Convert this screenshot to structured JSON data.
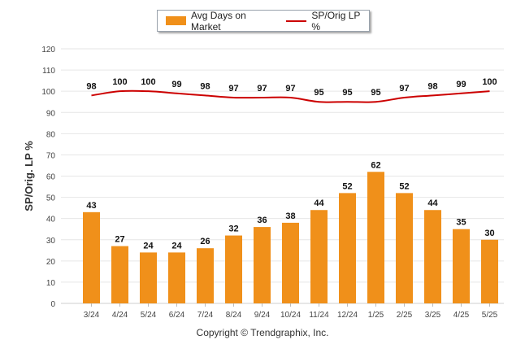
{
  "legend": {
    "bar_label": "Avg Days on Market",
    "line_label": "SP/Orig LP %"
  },
  "copyright": "Copyright © Trendgraphix, Inc.",
  "colors": {
    "bar": "#f0901a",
    "line": "#cc0000",
    "grid": "#e6e6e6",
    "axis_text": "#444444"
  },
  "chart_data": {
    "type": "bar",
    "ylabel": "SP/Orig. LP %",
    "ylim": [
      0,
      120
    ],
    "yticks": [
      0,
      10,
      20,
      30,
      40,
      50,
      60,
      70,
      80,
      90,
      100,
      110,
      120
    ],
    "grid": true,
    "legend_position": "top-center",
    "categories": [
      "3/24",
      "4/24",
      "5/24",
      "6/24",
      "7/24",
      "8/24",
      "9/24",
      "10/24",
      "11/24",
      "12/24",
      "1/25",
      "2/25",
      "3/25",
      "4/25",
      "5/25"
    ],
    "series": [
      {
        "name": "Avg Days on Market",
        "type": "bar",
        "values": [
          43,
          27,
          24,
          24,
          26,
          32,
          36,
          38,
          44,
          52,
          62,
          52,
          44,
          35,
          30
        ]
      },
      {
        "name": "SP/Orig LP %",
        "type": "line",
        "values": [
          98,
          100,
          100,
          99,
          98,
          97,
          97,
          97,
          95,
          95,
          95,
          97,
          98,
          99,
          100
        ]
      }
    ]
  }
}
